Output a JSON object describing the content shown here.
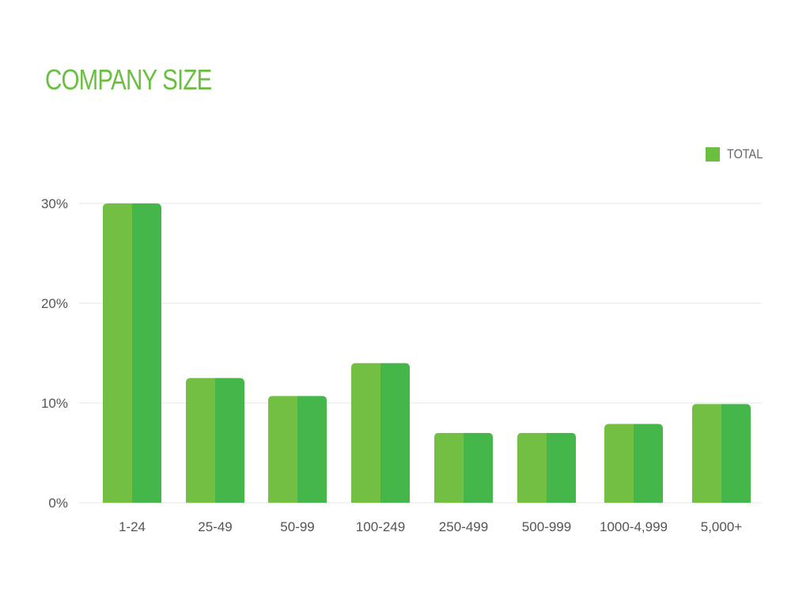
{
  "chart_data": {
    "type": "bar",
    "title": "COMPANY SIZE",
    "xlabel": "",
    "ylabel": "",
    "categories": [
      "1-24",
      "25-49",
      "50-99",
      "100-249",
      "250-499",
      "500-999",
      "1000-4,999",
      "5,000+"
    ],
    "series": [
      {
        "name": "TOTAL",
        "values": [
          30,
          12.5,
          10.7,
          14,
          7,
          7,
          7.9,
          9.9
        ]
      }
    ],
    "ylim": [
      0,
      30
    ],
    "yticks": [
      0,
      10,
      20,
      30
    ],
    "ytick_labels": [
      "0%",
      "10%",
      "20%",
      "30%"
    ],
    "grid": true,
    "legend_position": "top-right",
    "colors": {
      "title": "#6abf40",
      "bar_left": "#72bf44",
      "bar_right": "#45b649",
      "legend_swatch": "#6abf40",
      "grid": "#e6e6e6",
      "axis_text": "#555555"
    }
  }
}
